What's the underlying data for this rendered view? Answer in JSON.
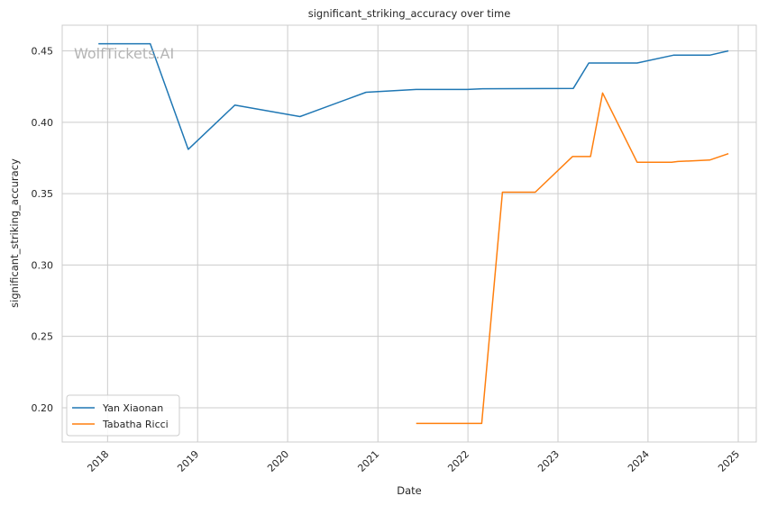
{
  "chart_data": {
    "type": "line",
    "title": "significant_striking_accuracy over time",
    "xlabel": "Date",
    "ylabel": "significant_striking_accuracy",
    "watermark": "WolfTickets.AI",
    "x_ticks": [
      "2018",
      "2019",
      "2020",
      "2021",
      "2022",
      "2023",
      "2024",
      "2025"
    ],
    "y_ticks": [
      "0.20",
      "0.25",
      "0.30",
      "0.35",
      "0.40",
      "0.45"
    ],
    "xlim": [
      "2017-07-01",
      "2025-03-15"
    ],
    "ylim": [
      0.176,
      0.468
    ],
    "grid": true,
    "legend": {
      "position": "bottom-left"
    },
    "series": [
      {
        "name": "Yan Xiaonan",
        "color": "#1f77b4",
        "points": [
          {
            "x": "2017-11-25",
            "y": 0.455
          },
          {
            "x": "2018-06-23",
            "y": 0.455
          },
          {
            "x": "2018-11-24",
            "y": 0.381
          },
          {
            "x": "2019-06-01",
            "y": 0.412
          },
          {
            "x": "2020-02-20",
            "y": 0.404
          },
          {
            "x": "2020-11-14",
            "y": 0.421
          },
          {
            "x": "2021-06-05",
            "y": 0.423
          },
          {
            "x": "2021-12-30",
            "y": 0.423
          },
          {
            "x": "2022-03-01",
            "y": 0.4235
          },
          {
            "x": "2023-03-04",
            "y": 0.4237
          },
          {
            "x": "2023-05-06",
            "y": 0.4415
          },
          {
            "x": "2023-11-18",
            "y": 0.4415
          },
          {
            "x": "2024-04-13",
            "y": 0.447
          },
          {
            "x": "2024-09-07",
            "y": 0.447
          },
          {
            "x": "2024-11-22",
            "y": 0.45
          }
        ]
      },
      {
        "name": "Tabatha Ricci",
        "color": "#ff7f0e",
        "points": [
          {
            "x": "2021-06-05",
            "y": 0.189
          },
          {
            "x": "2022-02-26",
            "y": 0.189
          },
          {
            "x": "2022-05-21",
            "y": 0.351
          },
          {
            "x": "2022-10-01",
            "y": 0.351
          },
          {
            "x": "2023-03-01",
            "y": 0.376
          },
          {
            "x": "2023-05-13",
            "y": 0.376
          },
          {
            "x": "2023-07-01",
            "y": 0.4205
          },
          {
            "x": "2023-11-18",
            "y": 0.372
          },
          {
            "x": "2024-04-06",
            "y": 0.372
          },
          {
            "x": "2024-05-01",
            "y": 0.3725
          },
          {
            "x": "2024-09-07",
            "y": 0.3735
          },
          {
            "x": "2024-11-22",
            "y": 0.378
          }
        ]
      }
    ]
  }
}
